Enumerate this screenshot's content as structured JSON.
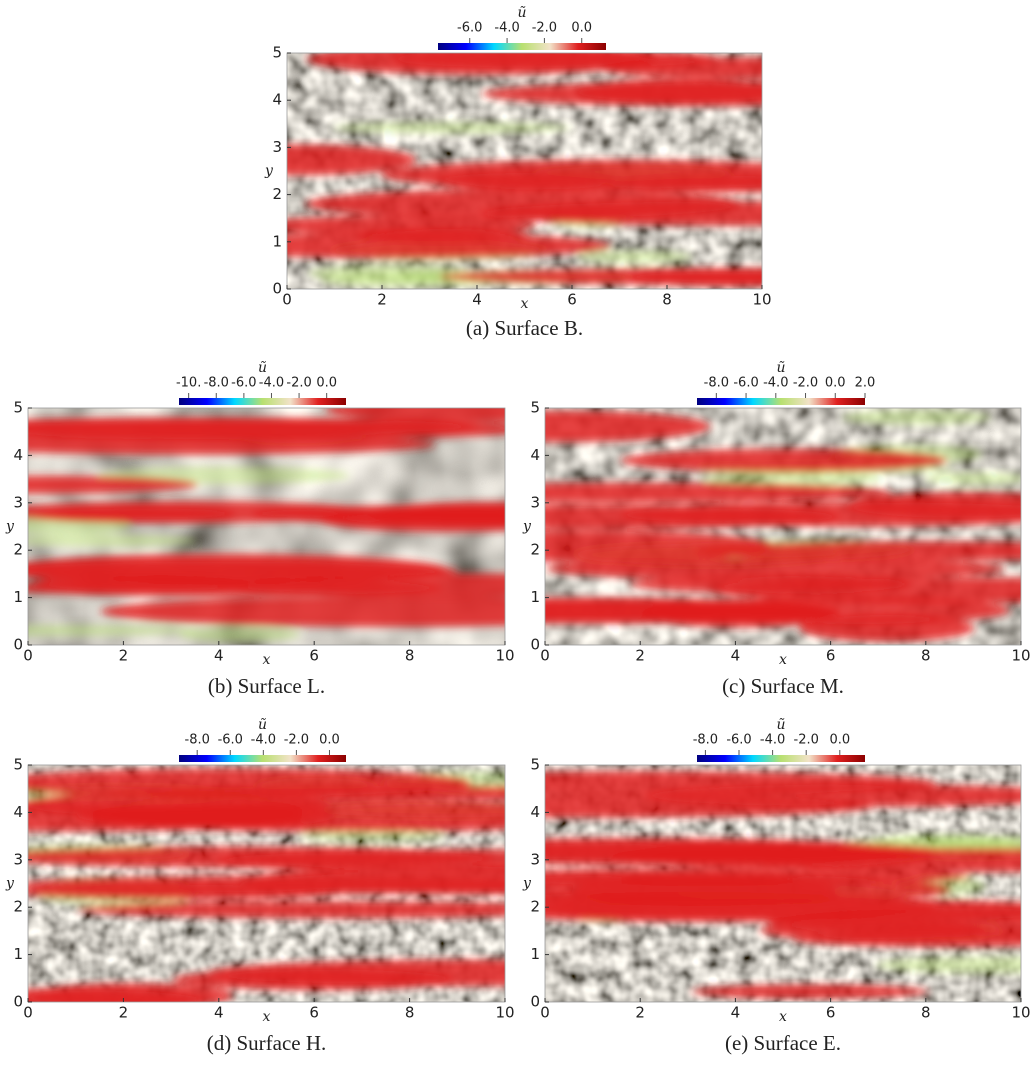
{
  "chart_data": [
    {
      "type": "heatmap",
      "caption": "(a) Surface B.",
      "xlabel": "x",
      "ylabel": "y",
      "colorbar_label": "ũ",
      "xlim": [
        0,
        10
      ],
      "ylim": [
        0,
        5
      ],
      "xticks": [
        0,
        2,
        4,
        6,
        8,
        10
      ],
      "yticks": [
        0,
        1,
        2,
        3,
        4,
        5
      ],
      "clim": [
        -7.7,
        1.3
      ],
      "cticks": [
        {
          "value": -6,
          "label": "-6.0"
        },
        {
          "value": -4,
          "label": "-4.0"
        },
        {
          "value": -2,
          "label": "-2.0"
        },
        {
          "value": 0,
          "label": "0.0"
        }
      ],
      "colormap": [
        "#00007f",
        "#0000ff",
        "#00d8ff",
        "#b8e070",
        "#f2e2c8",
        "#e02020",
        "#8b0000"
      ]
    },
    {
      "type": "heatmap",
      "caption": "(b) Surface L.",
      "xlabel": "x",
      "ylabel": "y",
      "colorbar_label": "ũ",
      "xlim": [
        0,
        10
      ],
      "ylim": [
        0,
        5
      ],
      "xticks": [
        0,
        2,
        4,
        6,
        8,
        10
      ],
      "yticks": [
        0,
        1,
        2,
        3,
        4,
        5
      ],
      "clim": [
        -10.7,
        1.4
      ],
      "cticks": [
        {
          "value": -10,
          "label": "-10."
        },
        {
          "value": -8,
          "label": "-8.0"
        },
        {
          "value": -6,
          "label": "-6.0"
        },
        {
          "value": -4,
          "label": "-4.0"
        },
        {
          "value": -2,
          "label": "-2.0"
        },
        {
          "value": 0,
          "label": "0.0"
        }
      ],
      "colormap": [
        "#00007f",
        "#0000ff",
        "#00d8ff",
        "#b8e070",
        "#f2e2c8",
        "#e02020",
        "#8b0000"
      ]
    },
    {
      "type": "heatmap",
      "caption": "(c) Surface M.",
      "xlabel": "x",
      "ylabel": "y",
      "colorbar_label": "ũ",
      "xlim": [
        0,
        10
      ],
      "ylim": [
        0,
        5
      ],
      "xticks": [
        0,
        2,
        4,
        6,
        8,
        10
      ],
      "yticks": [
        0,
        1,
        2,
        3,
        4,
        5
      ],
      "clim": [
        -9.3,
        2.0
      ],
      "cticks": [
        {
          "value": -8,
          "label": "-8.0"
        },
        {
          "value": -6,
          "label": "-6.0"
        },
        {
          "value": -4,
          "label": "-4.0"
        },
        {
          "value": -2,
          "label": "-2.0"
        },
        {
          "value": 0,
          "label": "0.0"
        },
        {
          "value": 2,
          "label": "2.0"
        }
      ],
      "colormap": [
        "#00007f",
        "#0000ff",
        "#00d8ff",
        "#b8e070",
        "#f2e2c8",
        "#e02020",
        "#8b0000"
      ]
    },
    {
      "type": "heatmap",
      "caption": "(d) Surface H.",
      "xlabel": "x",
      "ylabel": "y",
      "colorbar_label": "ũ",
      "xlim": [
        0,
        10
      ],
      "ylim": [
        0,
        5
      ],
      "xticks": [
        0,
        2,
        4,
        6,
        8,
        10
      ],
      "yticks": [
        0,
        1,
        2,
        3,
        4,
        5
      ],
      "clim": [
        -9.1,
        1.0
      ],
      "cticks": [
        {
          "value": -8,
          "label": "-8.0"
        },
        {
          "value": -6,
          "label": "-6.0"
        },
        {
          "value": -4,
          "label": "-4.0"
        },
        {
          "value": -2,
          "label": "-2.0"
        },
        {
          "value": 0,
          "label": "0.0"
        }
      ],
      "colormap": [
        "#00007f",
        "#0000ff",
        "#00d8ff",
        "#b8e070",
        "#f2e2c8",
        "#e02020",
        "#8b0000"
      ]
    },
    {
      "type": "heatmap",
      "caption": "(e) Surface E.",
      "xlabel": "x",
      "ylabel": "y",
      "colorbar_label": "ũ",
      "xlim": [
        0,
        10
      ],
      "ylim": [
        0,
        5
      ],
      "xticks": [
        0,
        2,
        4,
        6,
        8,
        10
      ],
      "yticks": [
        0,
        1,
        2,
        3,
        4,
        5
      ],
      "clim": [
        -8.5,
        1.5
      ],
      "cticks": [
        {
          "value": -8,
          "label": "-8.0"
        },
        {
          "value": -6,
          "label": "-6.0"
        },
        {
          "value": -4,
          "label": "-4.0"
        },
        {
          "value": -2,
          "label": "-2.0"
        },
        {
          "value": 0,
          "label": "0.0"
        }
      ],
      "colormap": [
        "#00007f",
        "#0000ff",
        "#00d8ff",
        "#b8e070",
        "#f2e2c8",
        "#e02020",
        "#8b0000"
      ]
    }
  ]
}
